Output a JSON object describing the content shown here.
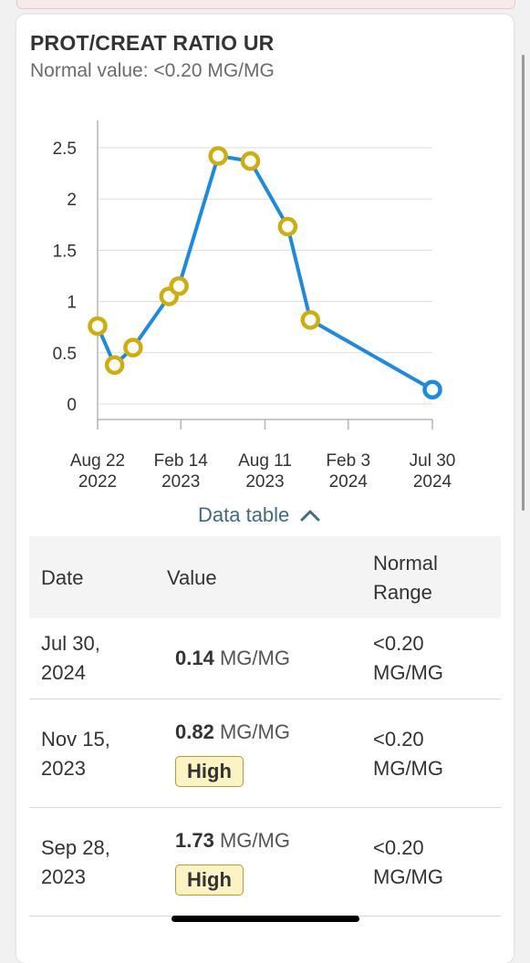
{
  "card": {
    "title": "PROT/CREAT RATIO UR",
    "subtitle": "Normal value: <0.20 MG/MG"
  },
  "chart_data": {
    "type": "line",
    "y_ticks": [
      "2.5",
      "2",
      "1.5",
      "1",
      "0.5",
      "0"
    ],
    "ylim": [
      0,
      2.5
    ],
    "x_ticks": [
      {
        "line1": "Aug 22",
        "line2": "2022",
        "date": "2022-08-22"
      },
      {
        "line1": "Feb 14",
        "line2": "2023",
        "date": "2023-02-14"
      },
      {
        "line1": "Aug 11",
        "line2": "2023",
        "date": "2023-08-11"
      },
      {
        "line1": "Feb 3",
        "line2": "2024",
        "date": "2024-02-03"
      },
      {
        "line1": "Jul 30",
        "line2": "2024",
        "date": "2024-07-30"
      }
    ],
    "series": [
      {
        "points": [
          {
            "date": "2022-08-22",
            "y": 0.76,
            "high": true
          },
          {
            "date": "2022-09-27",
            "y": 0.38,
            "high": true
          },
          {
            "date": "2022-11-05",
            "y": 0.55,
            "high": true
          },
          {
            "date": "2023-01-20",
            "y": 1.05,
            "high": true
          },
          {
            "date": "2023-02-10",
            "y": 1.15,
            "high": true
          },
          {
            "date": "2023-05-04",
            "y": 2.42,
            "high": true
          },
          {
            "date": "2023-07-11",
            "y": 2.37,
            "high": true
          },
          {
            "date": "2023-09-28",
            "y": 1.73,
            "high": true
          },
          {
            "date": "2023-11-15",
            "y": 0.82,
            "high": true
          },
          {
            "date": "2024-07-30",
            "y": 0.14,
            "high": false
          }
        ]
      }
    ],
    "colors": {
      "line": "#1a8ae5",
      "high_marker": "#cfae0b",
      "normal_marker": "#1a8ae5",
      "grid": "#dddddd"
    }
  },
  "data_table": {
    "toggle_label": "Data table",
    "headers": {
      "date": "Date",
      "value": "Value",
      "range_line1": "Normal",
      "range_line2": "Range"
    },
    "rows": [
      {
        "date_l1": "Jul 30,",
        "date_l2": "2024",
        "value": "0.14",
        "unit": "MG/MG",
        "flag": "",
        "range_l1": "<0.20",
        "range_l2": "MG/MG"
      },
      {
        "date_l1": "Nov 15,",
        "date_l2": "2023",
        "value": "0.82",
        "unit": "MG/MG",
        "flag": "High",
        "range_l1": "<0.20",
        "range_l2": "MG/MG"
      },
      {
        "date_l1": "Sep 28,",
        "date_l2": "2023",
        "value": "1.73",
        "unit": "MG/MG",
        "flag": "High",
        "range_l1": "<0.20",
        "range_l2": "MG/MG"
      }
    ]
  }
}
